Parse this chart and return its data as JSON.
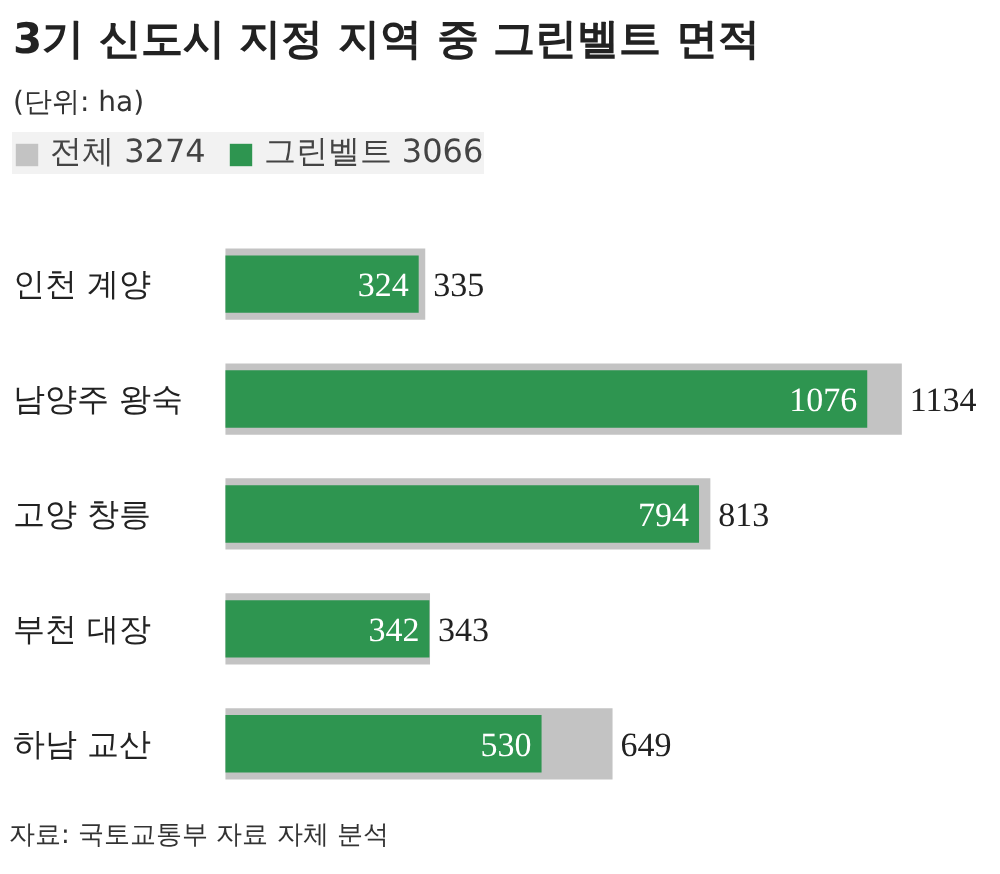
{
  "chart_data": {
    "type": "bar",
    "orientation": "horizontal",
    "title": "3기 신도시 지정 지역 중 그린벨트 면적",
    "subtitle": "(단위: ha)",
    "categories": [
      "인천 계양",
      "남양주 왕숙",
      "고양 창릉",
      "부천 대장",
      "하남 교산"
    ],
    "series": [
      {
        "name": "전체 3274",
        "color": "#c3c3c3",
        "values": [
          335,
          1134,
          813,
          343,
          649
        ]
      },
      {
        "name": "그린벨트 3066",
        "color": "#2e9550",
        "values": [
          324,
          1076,
          794,
          342,
          530
        ]
      }
    ],
    "data_labels": true,
    "legend": "top left",
    "grid": false,
    "annotations": [
      "자료: 국토교통부 자료 자체 분석"
    ]
  }
}
